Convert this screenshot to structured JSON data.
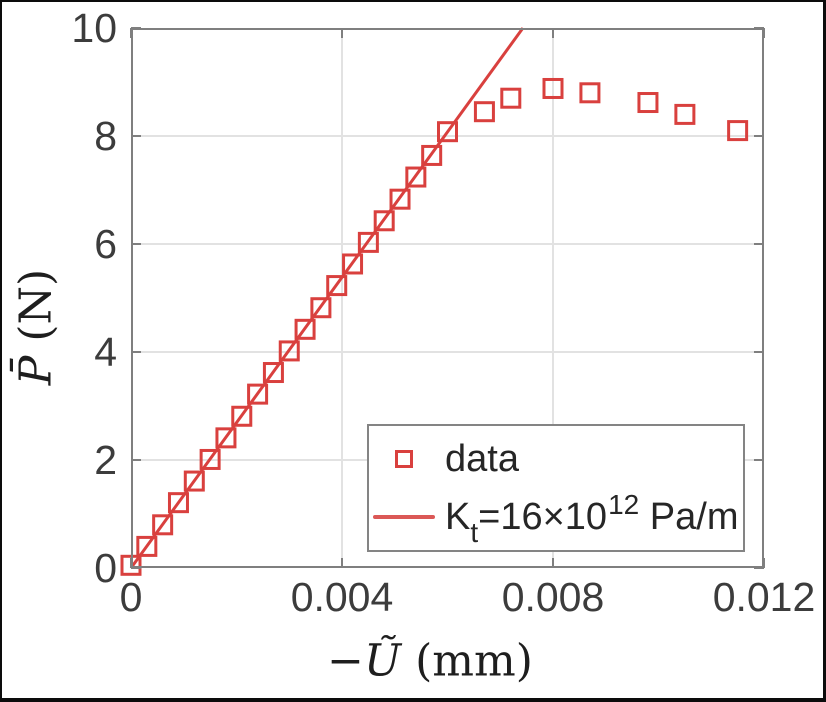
{
  "figure": {
    "background": "#ffffff",
    "outer_border_color": "#0c0c0c"
  },
  "chart_data": {
    "type": "scatter",
    "title": "",
    "xlabel": "-Ũ (mm)",
    "ylabel": "P̄ (N)",
    "xlabel_parts": {
      "var": "−Ũ",
      "unit": " (mm)"
    },
    "ylabel_parts": {
      "var": "P̄",
      "unit": " (N)"
    },
    "xlim": [
      0,
      0.012
    ],
    "ylim": [
      0,
      10
    ],
    "xticks": [
      0,
      0.004,
      0.008,
      0.012
    ],
    "xtick_labels": [
      "0",
      "0.004",
      "0.008",
      "0.012"
    ],
    "yticks": [
      0,
      2,
      4,
      6,
      8,
      10
    ],
    "ytick_labels": [
      "0",
      "2",
      "4",
      "6",
      "8",
      "10"
    ],
    "grid": true,
    "legend_position": "inside lower-right",
    "colors": {
      "marker": "#d9403e",
      "line": "#d9403e",
      "axis": "#7f7f7f",
      "grid": "#e2e2e2",
      "tick_label": "#3c3c3c"
    },
    "series": [
      {
        "name": "data",
        "type": "scatter",
        "marker": "open-square",
        "x": [
          0.0,
          0.0003,
          0.0006,
          0.0009,
          0.0012,
          0.0015,
          0.0018,
          0.0021,
          0.0024,
          0.0027,
          0.003,
          0.0033,
          0.0036,
          0.0039,
          0.0042,
          0.0045,
          0.0048,
          0.0051,
          0.0054,
          0.0057,
          0.006,
          0.0067,
          0.0072,
          0.008,
          0.0087,
          0.0098,
          0.0105,
          0.0115
        ],
        "y": [
          0.05,
          0.4,
          0.8,
          1.21,
          1.61,
          2.01,
          2.41,
          2.81,
          3.22,
          3.62,
          4.02,
          4.42,
          4.82,
          5.23,
          5.63,
          6.03,
          6.43,
          6.83,
          7.24,
          7.64,
          8.08,
          8.45,
          8.7,
          8.88,
          8.8,
          8.62,
          8.4,
          8.1
        ]
      },
      {
        "name": "Kt=16×10^12 Pa/m",
        "type": "line",
        "x": [
          0,
          0.00743
        ],
        "y": [
          0,
          10
        ]
      }
    ],
    "legend": {
      "entries": [
        {
          "label": "data"
        },
        {
          "label": "Kt=16×10^12 Pa/m",
          "parts": {
            "pre": "K",
            "sub": "t",
            "mid": "=16×10",
            "sup": "12",
            "post": " Pa/m"
          }
        }
      ]
    }
  }
}
